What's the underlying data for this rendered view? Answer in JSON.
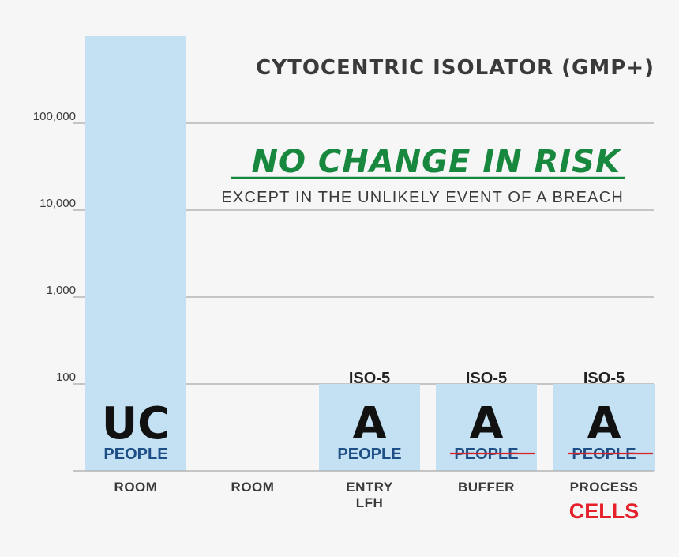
{
  "chart_data": {
    "type": "bar",
    "title": "CYTOCENTRIC ISOLATOR (GMP+)",
    "headline": "NO CHANGE IN RISK",
    "subheadline": "EXCEPT IN THE UNLIKELY EVENT OF A BREACH",
    "y_scale": "log",
    "ylim": [
      10,
      1000000
    ],
    "y_ticks": [
      "100",
      "1,000",
      "10,000",
      "100,000"
    ],
    "grid": true,
    "categories": [
      {
        "label": "ROOM",
        "label2": ""
      },
      {
        "label": "ROOM",
        "label2": ""
      },
      {
        "label": "ENTRY",
        "label2": "LFH"
      },
      {
        "label": "BUFFER",
        "label2": ""
      },
      {
        "label": "PROCESS",
        "label2": "CELLS"
      }
    ],
    "values": [
      1000000,
      null,
      100,
      100,
      100
    ],
    "bar_labels": [
      {
        "iso": "",
        "grade": "UC",
        "people": "PEOPLE",
        "people_struck": false
      },
      null,
      {
        "iso": "ISO-5",
        "grade": "A",
        "people": "PEOPLE",
        "people_struck": false
      },
      {
        "iso": "ISO-5",
        "grade": "A",
        "people": "PEOPLE",
        "people_struck": true
      },
      {
        "iso": "ISO-5",
        "grade": "A",
        "people": "PEOPLE",
        "people_struck": true
      }
    ],
    "colors": {
      "bar": "#c3e1f2",
      "grid": "#a8a8a8",
      "headline": "#18883f",
      "people": "#1d4f86",
      "strike": "#d8232a",
      "cells": "#e5202a"
    }
  }
}
